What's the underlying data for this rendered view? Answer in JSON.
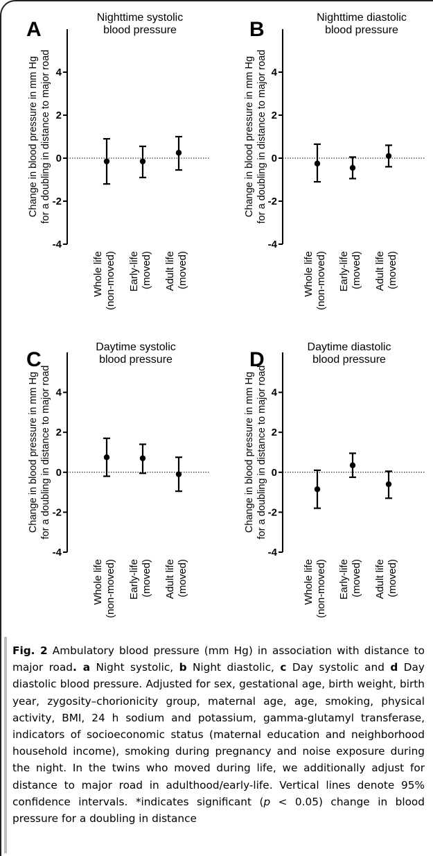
{
  "chart_data": [
    {
      "type": "errorbar",
      "panel_letter": "A",
      "title": [
        "Nighttime systolic",
        "blood pressure"
      ],
      "ylabel": [
        "Change in  blood pressure in mm Hg",
        "for a doubling in distance to major road"
      ],
      "ylim": [
        -4,
        6
      ],
      "yticks": [
        -4,
        -2,
        0,
        2,
        4
      ],
      "reference_line": 0,
      "categories": [
        [
          "Whole life",
          "(non-moved)"
        ],
        [
          "Early-life",
          "(moved)"
        ],
        [
          "Adult life",
          "(moved)"
        ]
      ],
      "estimates": [
        -0.15,
        -0.15,
        0.25
      ],
      "ci_lower": [
        -1.2,
        -0.9,
        -0.55
      ],
      "ci_upper": [
        0.9,
        0.55,
        1.0
      ]
    },
    {
      "type": "errorbar",
      "panel_letter": "B",
      "title": [
        "Nighttime diastolic",
        "blood pressure"
      ],
      "ylabel": [
        "Change in  blood pressure in mm Hg",
        "for a doubling in distance to major road"
      ],
      "ylim": [
        -4,
        6
      ],
      "yticks": [
        -4,
        -2,
        0,
        2,
        4
      ],
      "reference_line": 0,
      "categories": [
        [
          "Whole life",
          "(non-moved)"
        ],
        [
          "Early-life",
          "(moved)"
        ],
        [
          "Adult life",
          "(moved)"
        ]
      ],
      "estimates": [
        -0.25,
        -0.45,
        0.1
      ],
      "ci_lower": [
        -1.1,
        -0.95,
        -0.4
      ],
      "ci_upper": [
        0.65,
        0.05,
        0.6
      ]
    },
    {
      "type": "errorbar",
      "panel_letter": "C",
      "title": [
        "Daytime systolic",
        "blood pressure"
      ],
      "ylabel": [
        "Change in  blood pressure in mm Hg",
        "for a doubling in distance to major road"
      ],
      "ylim": [
        -4,
        6
      ],
      "yticks": [
        -4,
        -2,
        0,
        2,
        4
      ],
      "reference_line": 0,
      "categories": [
        [
          "Whole life",
          "(non-moved)"
        ],
        [
          "Early-life",
          "(moved)"
        ],
        [
          "Adult life",
          "(moved)"
        ]
      ],
      "estimates": [
        0.75,
        0.7,
        -0.1
      ],
      "ci_lower": [
        -0.2,
        -0.05,
        -0.95
      ],
      "ci_upper": [
        1.7,
        1.4,
        0.75
      ]
    },
    {
      "type": "errorbar",
      "panel_letter": "D",
      "title": [
        "Daytime diastolic",
        "blood pressure"
      ],
      "ylabel": [
        "Change in  blood pressure in mm Hg",
        "for a doubling in distance to major road"
      ],
      "ylim": [
        -4,
        6
      ],
      "yticks": [
        -4,
        -2,
        0,
        2,
        4
      ],
      "reference_line": 0,
      "categories": [
        [
          "Whole life",
          "(non-moved)"
        ],
        [
          "Early-life",
          "(moved)"
        ],
        [
          "Adult life",
          "(moved)"
        ]
      ],
      "estimates": [
        -0.85,
        0.35,
        -0.6
      ],
      "ci_lower": [
        -1.8,
        -0.25,
        -1.3
      ],
      "ci_upper": [
        0.1,
        0.95,
        0.05
      ]
    }
  ],
  "caption": {
    "fig_label": "Fig. 2",
    "title_text": " Ambulatory blood pressure (mm Hg) in association with distance to major road",
    "title_period": ". ",
    "letters": [
      "a",
      "b",
      "c",
      "d"
    ],
    "panels": [
      " Night systolic, ",
      " Night diastolic, ",
      " Day systolic and ",
      " Day diastolic blood pressure. "
    ],
    "body": "Adjusted for sex, gestational age, birth weight, birth year, zygosity–chorionicity group, maternal age, age, smoking, physical activity, BMI, 24 h sodium and potassium, gamma-glutamyl transferase, indicators of socioeconomic status (maternal education and neighborhood household income), smoking during pregnancy and noise exposure during the night. In the twins who moved during life, we additionally adjust for distance to major road in adulthood/early-life. Vertical lines denote 95% confidence intervals. *indicates significant (",
    "p_var": "p",
    "p_rest": " < 0.05) change in blood pressure for a doubling in distance"
  }
}
